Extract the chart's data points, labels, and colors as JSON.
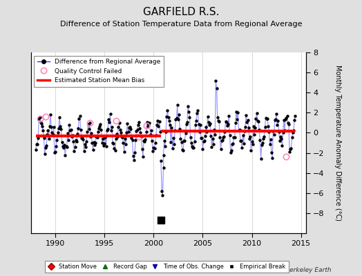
{
  "title": "GARFIELD R.S.",
  "subtitle": "Difference of Station Temperature Data from Regional Average",
  "ylabel_right": "Monthly Temperature Anomaly Difference (°C)",
  "xlim": [
    1987.5,
    2015.5
  ],
  "ylim": [
    -10,
    8
  ],
  "yticks_right": [
    -8,
    -6,
    -4,
    -2,
    0,
    2,
    4,
    6,
    8
  ],
  "xticks": [
    1990,
    1995,
    2000,
    2005,
    2010,
    2015
  ],
  "mean_bias_before": -0.3,
  "mean_bias_after": 0.2,
  "break_year": 2000.75,
  "background_color": "#e0e0e0",
  "plot_bg_color": "#ffffff",
  "line_color": "#3333ff",
  "line_color_light": "#9999ff",
  "marker_color": "#000000",
  "bias_line_color": "#ff0000",
  "qc_fail_edgecolor": "#ff88bb",
  "title_fontsize": 11,
  "subtitle_fontsize": 8,
  "tick_fontsize": 8,
  "watermark": "Berkeley Earth",
  "seed": 12345
}
